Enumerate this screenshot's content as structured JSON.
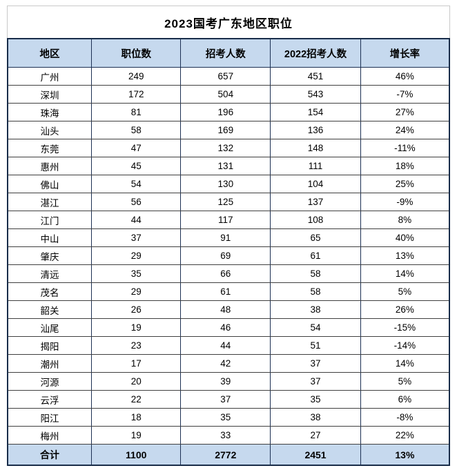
{
  "title": "2023国考广东地区职位",
  "colors": {
    "header_bg": "#c6d9ee",
    "total_bg": "#c6d9ee",
    "border_dark": "#182c49",
    "border_row": "#3f3f3f",
    "text": "#000000",
    "page_bg": "#ffffff"
  },
  "chart_data": {
    "type": "table",
    "title": "2023国考广东地区职位",
    "columns": [
      "地区",
      "职位数",
      "招考人数",
      "2022招考人数",
      "增长率"
    ],
    "rows": [
      [
        "广州",
        "249",
        "657",
        "451",
        "46%"
      ],
      [
        "深圳",
        "172",
        "504",
        "543",
        "-7%"
      ],
      [
        "珠海",
        "81",
        "196",
        "154",
        "27%"
      ],
      [
        "汕头",
        "58",
        "169",
        "136",
        "24%"
      ],
      [
        "东莞",
        "47",
        "132",
        "148",
        "-11%"
      ],
      [
        "惠州",
        "45",
        "131",
        "111",
        "18%"
      ],
      [
        "佛山",
        "54",
        "130",
        "104",
        "25%"
      ],
      [
        "湛江",
        "56",
        "125",
        "137",
        "-9%"
      ],
      [
        "江门",
        "44",
        "117",
        "108",
        "8%"
      ],
      [
        "中山",
        "37",
        "91",
        "65",
        "40%"
      ],
      [
        "肇庆",
        "29",
        "69",
        "61",
        "13%"
      ],
      [
        "清远",
        "35",
        "66",
        "58",
        "14%"
      ],
      [
        "茂名",
        "29",
        "61",
        "58",
        "5%"
      ],
      [
        "韶关",
        "26",
        "48",
        "38",
        "26%"
      ],
      [
        "汕尾",
        "19",
        "46",
        "54",
        "-15%"
      ],
      [
        "揭阳",
        "23",
        "44",
        "51",
        "-14%"
      ],
      [
        "潮州",
        "17",
        "42",
        "37",
        "14%"
      ],
      [
        "河源",
        "20",
        "39",
        "37",
        "5%"
      ],
      [
        "云浮",
        "22",
        "37",
        "35",
        "6%"
      ],
      [
        "阳江",
        "18",
        "35",
        "38",
        "-8%"
      ],
      [
        "梅州",
        "19",
        "33",
        "27",
        "22%"
      ]
    ],
    "total_row": [
      "合计",
      "1100",
      "2772",
      "2451",
      "13%"
    ],
    "layout": {
      "header_fill": "light-blue",
      "total_fill": "light-blue",
      "grid": "on",
      "alignment": "center"
    }
  }
}
